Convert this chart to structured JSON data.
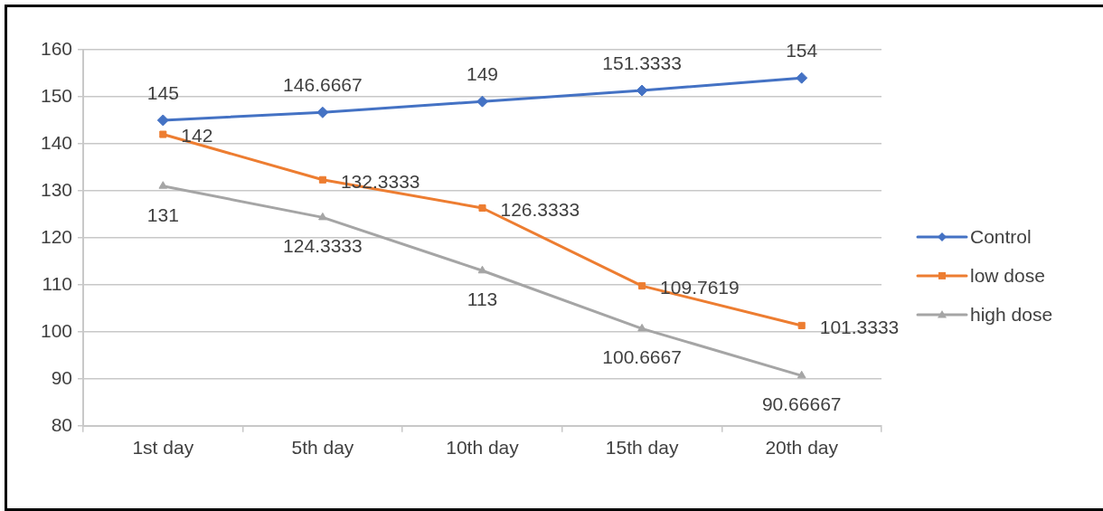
{
  "chart_data": {
    "type": "line",
    "categories": [
      "1st day",
      "5th day",
      "10th day",
      "15th day",
      "20th day"
    ],
    "series": [
      {
        "name": "Control",
        "color": "#4472c4",
        "marker": "diamond",
        "values": [
          145,
          146.6667,
          149,
          151.3333,
          154
        ]
      },
      {
        "name": "low dose",
        "color": "#ed7d31",
        "marker": "square",
        "values": [
          142,
          132.3333,
          126.3333,
          109.7619,
          101.3333
        ]
      },
      {
        "name": "high dose",
        "color": "#a5a5a5",
        "marker": "triangle",
        "values": [
          131,
          124.3333,
          113,
          100.6667,
          90.66667
        ]
      }
    ],
    "ylim": [
      80,
      160
    ],
    "yticks": [
      80,
      90,
      100,
      110,
      120,
      130,
      140,
      150,
      160
    ],
    "grid": "y",
    "legend": "right",
    "data_labels": true,
    "line_style": "solid"
  }
}
